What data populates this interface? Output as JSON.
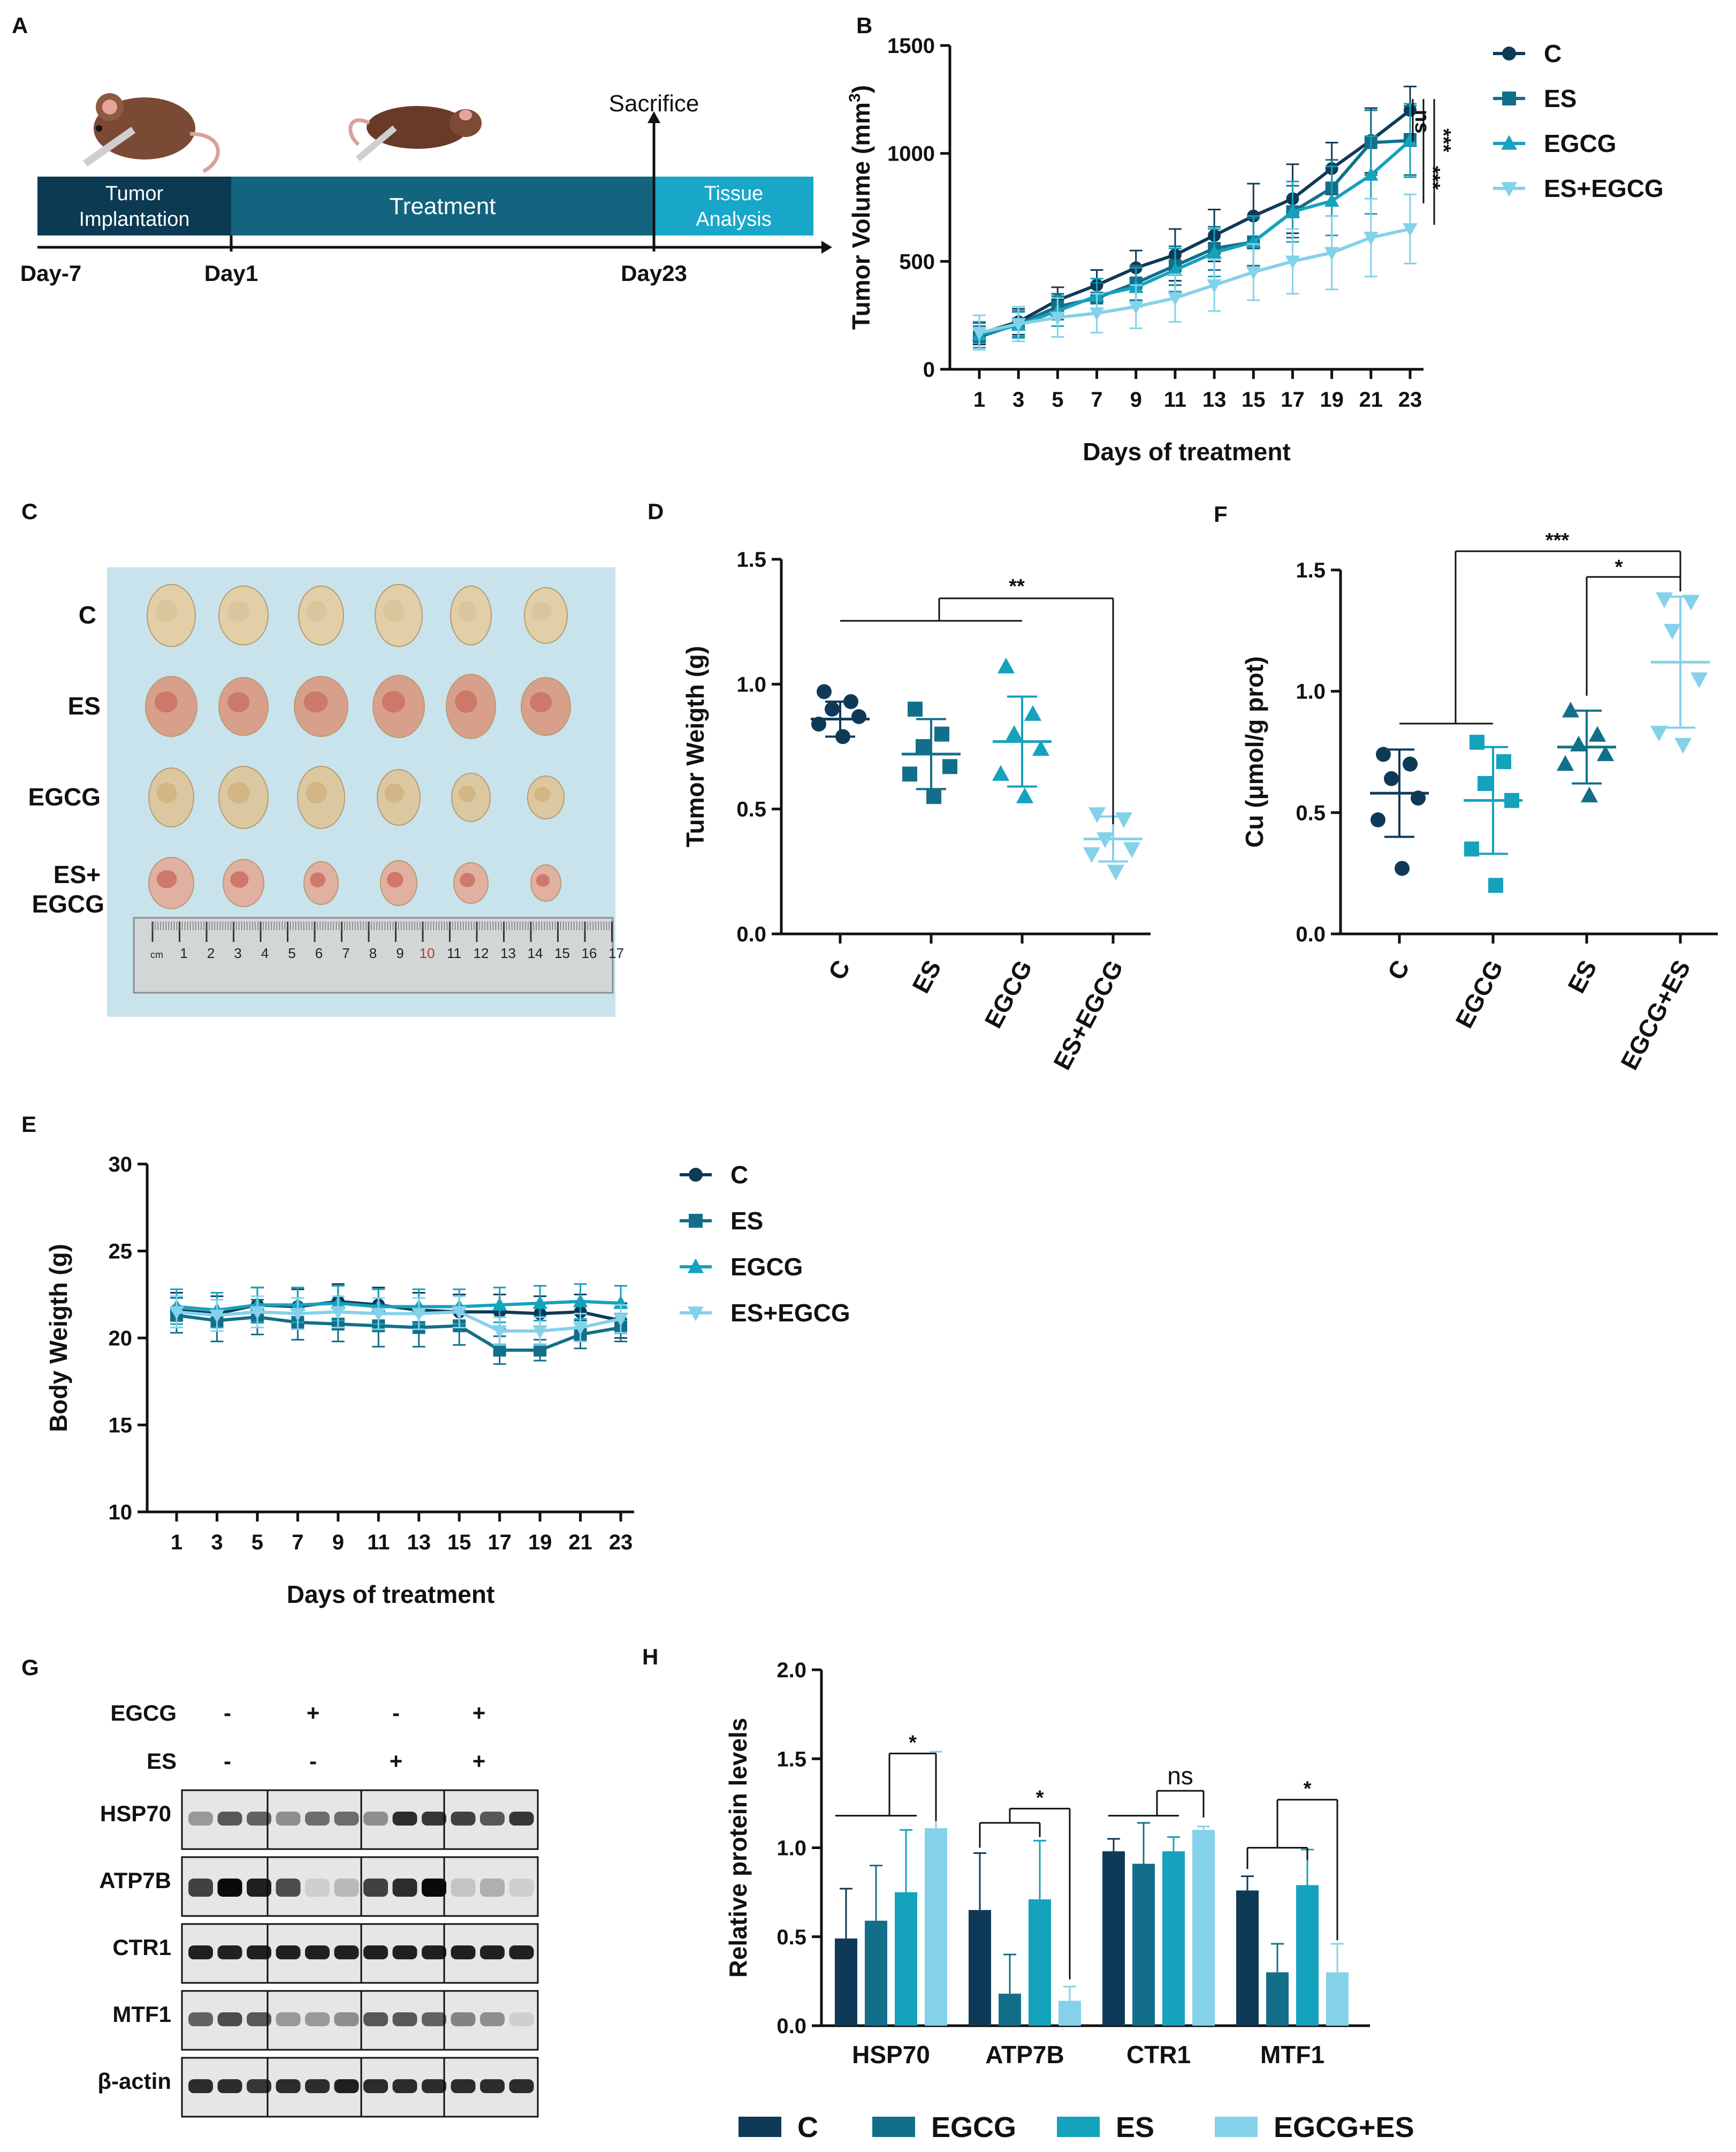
{
  "colors": {
    "C": "#0f3a57",
    "ES": "#136f89",
    "EGCG": "#14a2bd",
    "ESEGCG": "#84d1ea",
    "timeline_dark": "#0b3a52",
    "timeline_mid": "#13647f",
    "timeline_light": "#18a7c8",
    "paper": "#c9e3ec"
  },
  "panels": {
    "A": "A",
    "B": "B",
    "C": "C",
    "D": "D",
    "E": "E",
    "F": "F",
    "G": "G",
    "H": "H"
  },
  "timeline": {
    "seg1": "Tumor",
    "seg1b": "Implantation",
    "seg2": "Treatment",
    "seg3": "Tissue",
    "seg3b": "Analysis",
    "sacrifice": "Sacrifice",
    "day_start": "Day-7",
    "day1": "Day1",
    "day23": "Day23"
  },
  "photo": {
    "rows": [
      "C",
      "ES",
      "EGCG",
      "ES+",
      "EGCG"
    ],
    "ruler": [
      "cm",
      "1",
      "2",
      "3",
      "4",
      "5",
      "6",
      "7",
      "8",
      "9",
      "10",
      "11",
      "12",
      "13",
      "14",
      "15",
      "16",
      "17"
    ]
  },
  "chart_data": [
    {
      "id": "B",
      "type": "line",
      "xlabel": "Days of treatment",
      "ylabel": "Tumor Volume (mm",
      "ylabel_sup": "3",
      "ylabel_end": ")",
      "x": [
        1,
        3,
        5,
        7,
        9,
        11,
        13,
        15,
        17,
        19,
        21,
        23
      ],
      "ylim": [
        0,
        1500
      ],
      "yticks": [
        "0",
        "500",
        "1000",
        "1500"
      ],
      "legend": [
        "C",
        "ES",
        "EGCG",
        "ES+EGCG"
      ],
      "series": [
        {
          "name": "C",
          "values": [
            165,
            220,
            320,
            390,
            470,
            530,
            620,
            710,
            790,
            930,
            1060,
            1200
          ],
          "err": [
            50,
            60,
            60,
            70,
            80,
            120,
            120,
            150,
            160,
            120,
            150,
            110
          ]
        },
        {
          "name": "ES",
          "values": [
            150,
            210,
            290,
            330,
            400,
            480,
            560,
            590,
            730,
            840,
            1050,
            1060
          ],
          "err": [
            50,
            60,
            60,
            70,
            80,
            90,
            100,
            110,
            120,
            130,
            150,
            160
          ]
        },
        {
          "name": "EGCG",
          "values": [
            160,
            205,
            270,
            340,
            380,
            460,
            540,
            590,
            730,
            780,
            900,
            1060
          ],
          "err": [
            60,
            60,
            70,
            80,
            90,
            100,
            110,
            120,
            140,
            160,
            180,
            170
          ]
        },
        {
          "name": "ES+EGCG",
          "values": [
            170,
            210,
            240,
            260,
            290,
            330,
            390,
            450,
            500,
            540,
            610,
            650
          ],
          "err": [
            80,
            80,
            90,
            90,
            100,
            110,
            120,
            130,
            150,
            170,
            180,
            160
          ]
        }
      ],
      "significance": [
        "ns",
        "***",
        "***"
      ]
    },
    {
      "id": "D",
      "type": "scatter",
      "ylabel": "Tumor Weigth (g)",
      "ylim": [
        0,
        1.5
      ],
      "yticks": [
        "0.0",
        "0.5",
        "1.0",
        "1.5"
      ],
      "categories": [
        "C",
        "ES",
        "EGCG",
        "ES+EGCG"
      ],
      "groups": [
        {
          "name": "C",
          "points": [
            0.97,
            0.93,
            0.9,
            0.87,
            0.84,
            0.79
          ],
          "mean": 0.86,
          "sd": 0.07
        },
        {
          "name": "ES",
          "points": [
            0.9,
            0.8,
            0.75,
            0.67,
            0.64,
            0.55
          ],
          "mean": 0.72,
          "sd": 0.14
        },
        {
          "name": "EGCG",
          "points": [
            1.07,
            0.88,
            0.8,
            0.74,
            0.64,
            0.55
          ],
          "mean": 0.77,
          "sd": 0.18
        },
        {
          "name": "ES+EGCG",
          "points": [
            0.48,
            0.46,
            0.38,
            0.34,
            0.32,
            0.25
          ],
          "mean": 0.38,
          "sd": 0.09
        }
      ],
      "significance": [
        "**"
      ]
    },
    {
      "id": "F",
      "type": "scatter",
      "ylabel": "Cu (μmol/g prot)",
      "ylim": [
        0,
        1.5
      ],
      "yticks": [
        "0.0",
        "0.5",
        "1.0",
        "1.5"
      ],
      "categories": [
        "C",
        "EGCG",
        "ES",
        "EGCG+ES"
      ],
      "groups": [
        {
          "name": "C",
          "points": [
            0.74,
            0.7,
            0.64,
            0.56,
            0.47,
            0.27
          ],
          "mean": 0.58,
          "sd": 0.18
        },
        {
          "name": "EGCG",
          "points": [
            0.79,
            0.71,
            0.62,
            0.55,
            0.35,
            0.2
          ],
          "mean": 0.55,
          "sd": 0.22
        },
        {
          "name": "ES",
          "points": [
            0.92,
            0.82,
            0.78,
            0.74,
            0.7,
            0.57
          ],
          "mean": 0.77,
          "sd": 0.15
        },
        {
          "name": "EGCG+ES",
          "points": [
            1.38,
            1.37,
            1.25,
            1.05,
            0.83,
            0.78
          ],
          "mean": 1.12,
          "sd": 0.27
        }
      ],
      "significance": [
        "***",
        "*"
      ]
    },
    {
      "id": "E",
      "type": "line",
      "xlabel": "Days of treatment",
      "ylabel": "Body Weigth (g)",
      "x": [
        1,
        3,
        5,
        7,
        9,
        11,
        13,
        15,
        17,
        19,
        21,
        23
      ],
      "ylim": [
        10,
        30
      ],
      "yticks": [
        "10",
        "15",
        "20",
        "25",
        "30"
      ],
      "legend": [
        "C",
        "ES",
        "EGCG",
        "ES+EGCG"
      ],
      "series": [
        {
          "name": "C",
          "values": [
            21.6,
            21.4,
            21.9,
            21.8,
            22.1,
            21.9,
            21.6,
            21.5,
            21.5,
            21.4,
            21.5,
            21.0
          ],
          "err": [
            1.0,
            1.0,
            1.0,
            1.0,
            1.0,
            1.0,
            1.0,
            1.0,
            1.0,
            1.0,
            1.0,
            1.0
          ]
        },
        {
          "name": "ES",
          "values": [
            21.3,
            21.0,
            21.2,
            20.9,
            20.8,
            20.7,
            20.6,
            20.7,
            19.3,
            19.3,
            20.2,
            20.6
          ],
          "err": [
            1.0,
            1.2,
            1.0,
            1.0,
            1.0,
            1.2,
            1.1,
            1.1,
            0.8,
            0.6,
            0.8,
            0.8
          ]
        },
        {
          "name": "EGCG",
          "values": [
            21.8,
            21.6,
            21.9,
            21.9,
            22.0,
            21.8,
            21.8,
            21.8,
            21.9,
            22.0,
            22.1,
            22.0
          ],
          "err": [
            1.0,
            1.0,
            1.0,
            1.0,
            1.0,
            1.0,
            1.0,
            1.0,
            1.0,
            1.0,
            1.0,
            1.0
          ]
        },
        {
          "name": "ES+EGCG",
          "values": [
            21.5,
            21.3,
            21.5,
            21.4,
            21.5,
            21.4,
            21.4,
            21.5,
            20.4,
            20.4,
            20.6,
            21.1
          ],
          "err": [
            0.9,
            0.9,
            0.9,
            0.9,
            0.9,
            0.9,
            0.9,
            0.9,
            0.8,
            0.8,
            0.8,
            0.8
          ]
        }
      ]
    },
    {
      "id": "H",
      "type": "bar",
      "ylabel": "Relative protein levels",
      "ylim": [
        0,
        2.0
      ],
      "yticks": [
        "0.0",
        "0.5",
        "1.0",
        "1.5",
        "2.0"
      ],
      "categories": [
        "HSP70",
        "ATP7B",
        "CTR1",
        "MTF1"
      ],
      "legend": [
        "C",
        "EGCG",
        "ES",
        "EGCG+ES"
      ],
      "series": [
        {
          "name": "C",
          "values": [
            0.49,
            0.65,
            0.98,
            0.76
          ],
          "err": [
            0.28,
            0.32,
            0.07,
            0.08
          ]
        },
        {
          "name": "EGCG",
          "values": [
            0.59,
            0.18,
            0.91,
            0.3
          ],
          "err": [
            0.31,
            0.22,
            0.23,
            0.16
          ]
        },
        {
          "name": "ES",
          "values": [
            0.75,
            0.71,
            0.98,
            0.79
          ],
          "err": [
            0.35,
            0.33,
            0.08,
            0.2
          ]
        },
        {
          "name": "EGCG+ES",
          "values": [
            1.11,
            0.14,
            1.1,
            0.3
          ],
          "err": [
            0.43,
            0.08,
            0.02,
            0.16
          ]
        }
      ],
      "significance": [
        "*",
        "*",
        "ns",
        "*"
      ]
    }
  ],
  "blot": {
    "egcg_label": "EGCG",
    "es_label": "ES",
    "egcg": [
      "-",
      "+",
      "-",
      "+"
    ],
    "es": [
      "-",
      "-",
      "+",
      "+"
    ],
    "proteins": [
      "HSP70",
      "ATP7B",
      "CTR1",
      "MTF1",
      "β-actin"
    ]
  }
}
